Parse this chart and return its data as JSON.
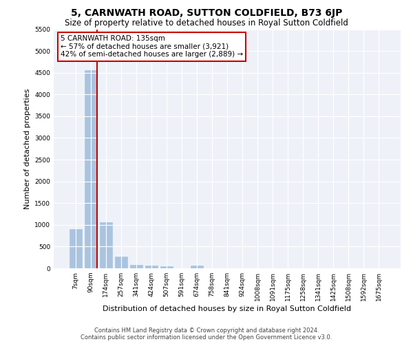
{
  "title": "5, CARNWATH ROAD, SUTTON COLDFIELD, B73 6JP",
  "subtitle": "Size of property relative to detached houses in Royal Sutton Coldfield",
  "xlabel": "Distribution of detached houses by size in Royal Sutton Coldfield",
  "ylabel": "Number of detached properties",
  "footer_line1": "Contains HM Land Registry data © Crown copyright and database right 2024.",
  "footer_line2": "Contains public sector information licensed under the Open Government Licence v3.0.",
  "bar_labels": [
    "7sqm",
    "90sqm",
    "174sqm",
    "257sqm",
    "341sqm",
    "424sqm",
    "507sqm",
    "591sqm",
    "674sqm",
    "758sqm",
    "841sqm",
    "924sqm",
    "1008sqm",
    "1091sqm",
    "1175sqm",
    "1258sqm",
    "1341sqm",
    "1425sqm",
    "1508sqm",
    "1592sqm",
    "1675sqm"
  ],
  "bar_values": [
    900,
    4560,
    1060,
    270,
    80,
    65,
    55,
    0,
    60,
    0,
    0,
    0,
    0,
    0,
    0,
    0,
    0,
    0,
    0,
    0,
    0
  ],
  "bar_color": "#aac4e0",
  "bar_edge_color": "#aac4e0",
  "vline_x_index": 1,
  "vline_color": "#cc0000",
  "annotation_text": "5 CARNWATH ROAD: 135sqm\n← 57% of detached houses are smaller (3,921)\n42% of semi-detached houses are larger (2,889) →",
  "annotation_box_color": "#ffffff",
  "annotation_box_edge": "#cc0000",
  "ylim": [
    0,
    5500
  ],
  "yticks": [
    0,
    500,
    1000,
    1500,
    2000,
    2500,
    3000,
    3500,
    4000,
    4500,
    5000,
    5500
  ],
  "background_color": "#ffffff",
  "plot_bg_color": "#eef2f8",
  "grid_color": "#ffffff",
  "title_fontsize": 10,
  "subtitle_fontsize": 8.5,
  "tick_fontsize": 6.5,
  "ylabel_fontsize": 8,
  "xlabel_fontsize": 8,
  "annotation_fontsize": 7.5,
  "footer_fontsize": 6
}
